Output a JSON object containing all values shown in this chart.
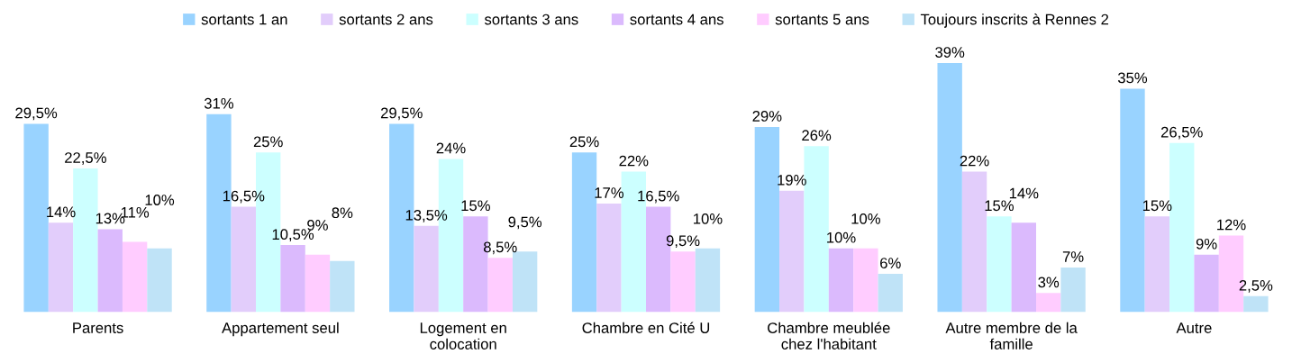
{
  "chart_data": {
    "type": "bar",
    "categories": [
      "Parents",
      "Appartement seul",
      "Logement en\ncolocation",
      "Chambre en Cité U",
      "Chambre meublée\nchez l'habitant",
      "Autre membre de la\nfamille",
      "Autre"
    ],
    "series": [
      {
        "name": "sortants 1 an",
        "color": "#99d3ff",
        "values": [
          29.5,
          31,
          29.5,
          25,
          29,
          39,
          35
        ],
        "value_labels": [
          "29,5%",
          "31%",
          "29,5%",
          "25%",
          "29%",
          "39%",
          "35%"
        ]
      },
      {
        "name": "sortants 2 ans",
        "color": "#e2cdfb",
        "values": [
          14,
          16.5,
          13.5,
          17,
          19,
          22,
          15
        ],
        "value_labels": [
          "14%",
          "16,5%",
          "13,5%",
          "17%",
          "19%",
          "22%",
          "15%"
        ]
      },
      {
        "name": "sortants 3 ans",
        "color": "#ccffff",
        "values": [
          22.5,
          25,
          24,
          22,
          26,
          15,
          26.5
        ],
        "value_labels": [
          "22,5%",
          "25%",
          "24%",
          "22%",
          "26%",
          "15%",
          "26,5%"
        ]
      },
      {
        "name": "sortants 4 ans",
        "color": "#dbbafd",
        "values": [
          13,
          10.5,
          15,
          16.5,
          10,
          14,
          9
        ],
        "value_labels": [
          "13%",
          "10,5%",
          "15%",
          "16,5%",
          "10%",
          "14%",
          "9%"
        ]
      },
      {
        "name": "sortants 5 ans",
        "color": "#ffccff",
        "values": [
          11,
          9,
          8.5,
          9.5,
          10,
          3,
          12
        ],
        "value_labels": [
          "11%",
          "9%",
          "8,5%",
          "9,5%",
          "10%",
          "3%",
          "12%"
        ]
      },
      {
        "name": "Toujours inscrits à Rennes 2",
        "color": "#bfe3f7",
        "values": [
          10,
          8,
          9.5,
          10,
          6,
          7,
          2.5
        ],
        "value_labels": [
          "10%",
          "8%",
          "9,5%",
          "10%",
          "6%",
          "7%",
          "2,5%"
        ]
      }
    ],
    "legend": "top",
    "grid": false
  }
}
